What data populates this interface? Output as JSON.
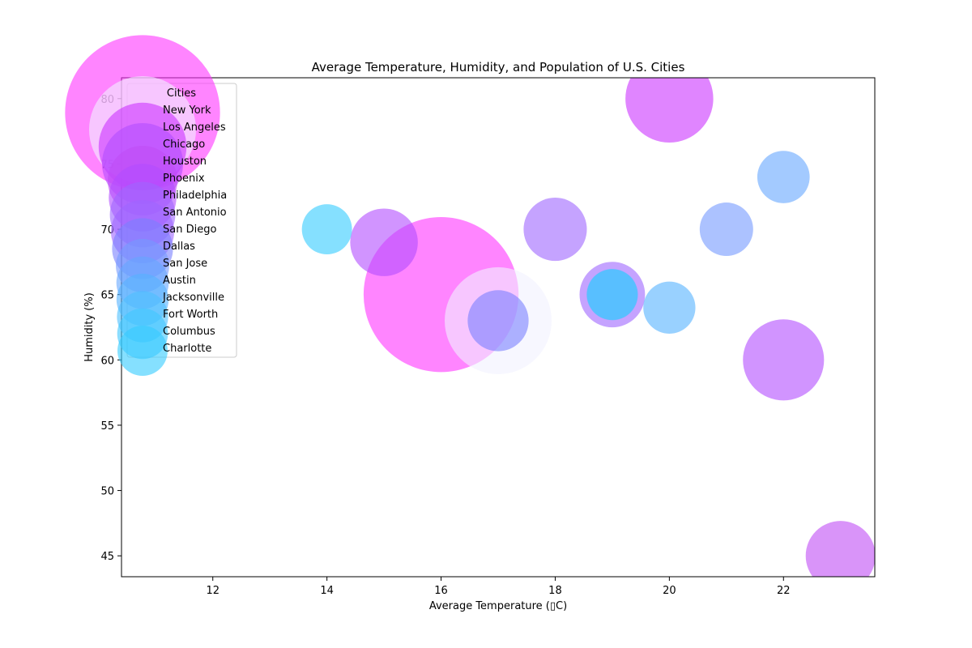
{
  "chart_data": {
    "type": "scatter",
    "title": "Average Temperature, Humidity, and Population of U.S. Cities",
    "xlabel": "Average Temperature (▯C)",
    "ylabel": "Humidity (%)",
    "xlim": [
      10.4,
      23.6
    ],
    "ylim": [
      43.4,
      81.6
    ],
    "xticks": [
      12,
      14,
      16,
      18,
      20,
      22
    ],
    "yticks": [
      45,
      50,
      55,
      60,
      65,
      70,
      75,
      80
    ],
    "grid": false,
    "legend": {
      "title": "Cities",
      "placement": "upper-left"
    },
    "size_encodes": "population",
    "points": [
      {
        "name": "New York",
        "x": 16,
        "y": 65,
        "color": "#ff33ff",
        "bubble": 8.4
      },
      {
        "name": "Los Angeles",
        "x": 17,
        "y": 63,
        "color": "#f2f2ff",
        "bubble": 4.0
      },
      {
        "name": "Chicago",
        "x": 20,
        "y": 80,
        "color": "#cc33ff",
        "bubble": 2.7
      },
      {
        "name": "Houston",
        "x": 22,
        "y": 60,
        "color": "#b34dff",
        "bubble": 2.3
      },
      {
        "name": "Phoenix",
        "x": 23,
        "y": 45,
        "color": "#c04df5",
        "bubble": 1.7
      },
      {
        "name": "Philadelphia",
        "x": 15,
        "y": 69,
        "color": "#b34dff",
        "bubble": 1.6
      },
      {
        "name": "San Antonio",
        "x": 19,
        "y": 65,
        "color": "#9f66ff",
        "bubble": 1.5
      },
      {
        "name": "San Diego",
        "x": 18,
        "y": 70,
        "color": "#9f66ff",
        "bubble": 1.4
      },
      {
        "name": "Dallas",
        "x": 17,
        "y": 63,
        "color": "#7a80ff",
        "bubble": 1.3
      },
      {
        "name": "San Jose",
        "x": 21,
        "y": 70,
        "color": "#7599ff",
        "bubble": 1.0
      },
      {
        "name": "Austin",
        "x": 22,
        "y": 74,
        "color": "#66a6ff",
        "bubble": 0.96
      },
      {
        "name": "Jacksonville",
        "x": 20,
        "y": 64,
        "color": "#55b2ff",
        "bubble": 0.95
      },
      {
        "name": "Fort Worth",
        "x": 19,
        "y": 65,
        "color": "#4dbfff",
        "bubble": 0.92
      },
      {
        "name": "Columbus",
        "x": 19,
        "y": 65,
        "color": "#40c6ff",
        "bubble": 0.9
      },
      {
        "name": "Charlotte",
        "x": 14,
        "y": 70,
        "color": "#33ccff",
        "bubble": 0.88
      }
    ]
  }
}
